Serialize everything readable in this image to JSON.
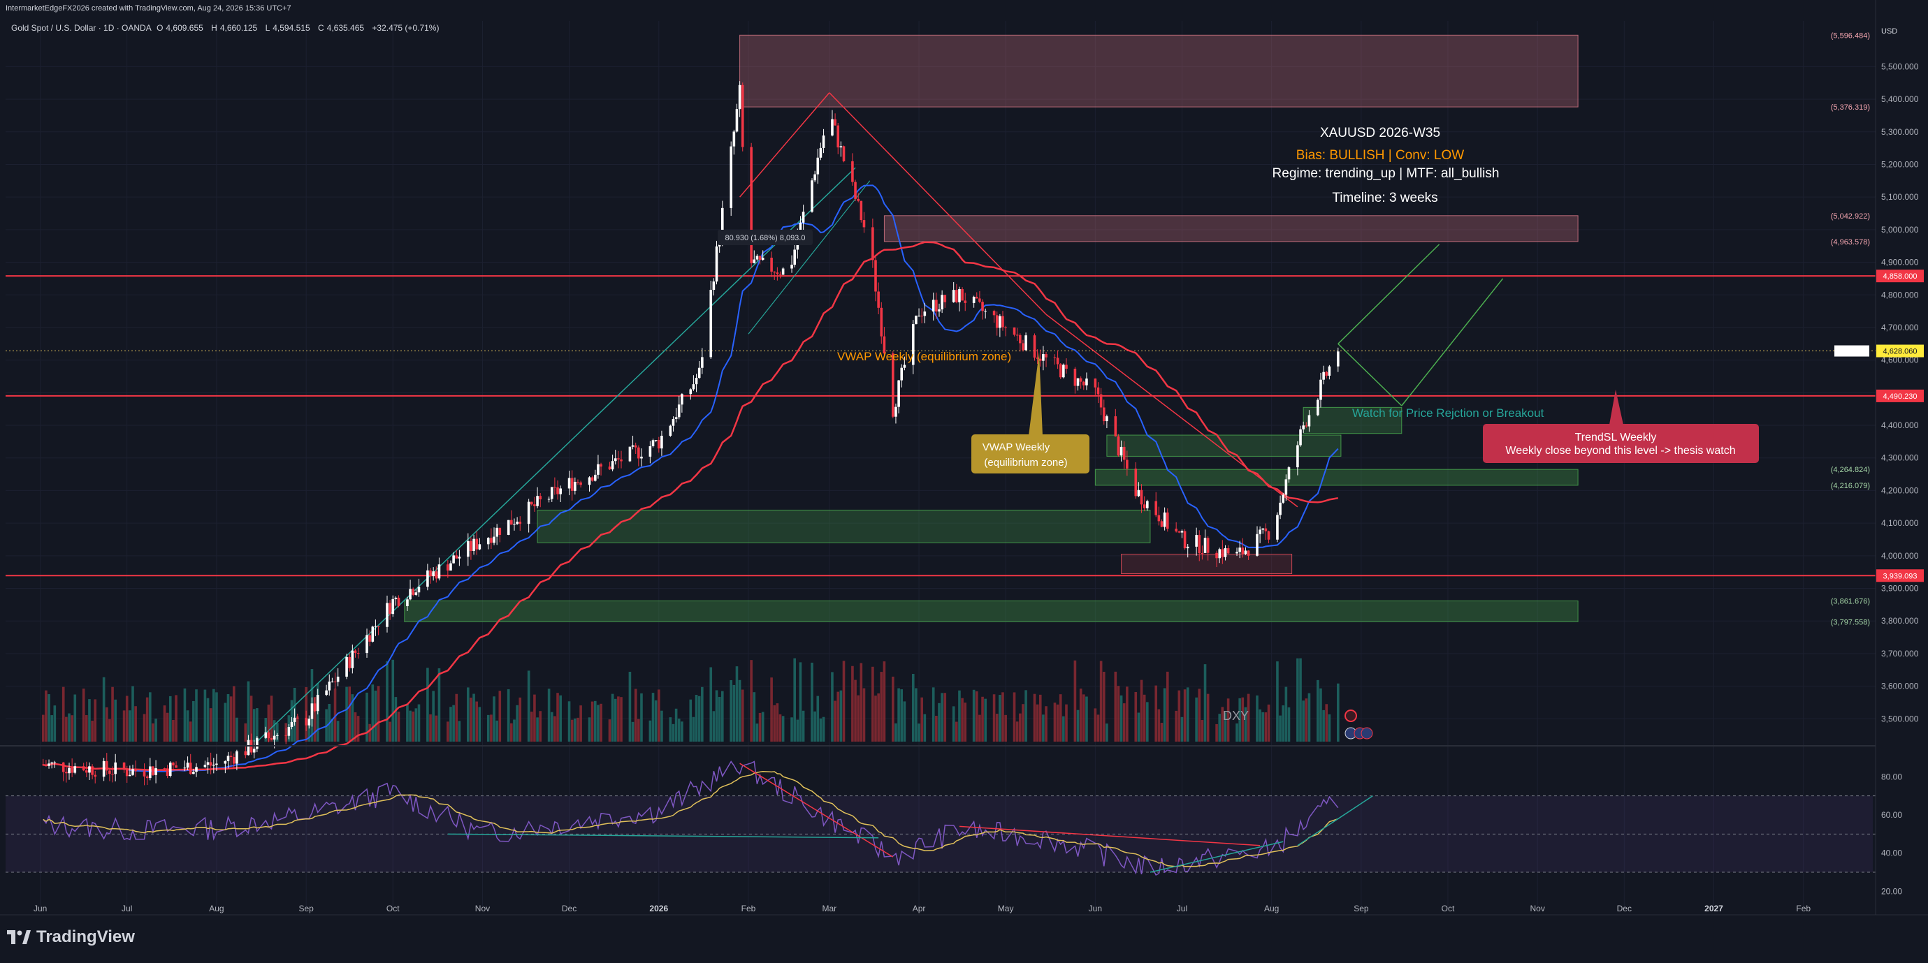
{
  "header": {
    "attribution": "IntermarketEdgeFX2026 created with TradingView.com, Aug 24, 2026 15:36 UTC+7",
    "symbol": "Gold Spot / U.S. Dollar · 1D · OANDA",
    "ohlc": [
      {
        "k": "O",
        "v": "4,609.655"
      },
      {
        "k": "H",
        "v": "4,660.125"
      },
      {
        "k": "L",
        "v": "4,594.515"
      },
      {
        "k": "C",
        "v": "4,635.465"
      }
    ],
    "change": "+32.475 (+0.71%)"
  },
  "axis": {
    "currency": "USD",
    "ticks": [
      "5,500.000",
      "5,400.000",
      "5,300.000",
      "5,200.000",
      "5,100.000",
      "5,000.000",
      "4,900.000",
      "4,800.000",
      "4,700.000",
      "4,600.000",
      "4,500.000",
      "4,400.000",
      "4,300.000",
      "4,200.000",
      "4,100.000",
      "4,000.000",
      "3,900.000",
      "3,800.000",
      "3,700.000",
      "3,600.000",
      "3,500.000"
    ],
    "rsi_ticks": [
      "80.00",
      "60.00",
      "40.00",
      "20.00"
    ],
    "months": [
      "Jun",
      "Jul",
      "Aug",
      "Sep",
      "Oct",
      "Nov",
      "Dec",
      "2026",
      "Feb",
      "Mar",
      "Apr",
      "May",
      "Jun",
      "Jul",
      "Aug",
      "Sep",
      "Oct",
      "Nov",
      "Dec",
      "2027",
      "Feb"
    ]
  },
  "price_labels": [
    {
      "text": "(5,596.484)",
      "value": 5596.484,
      "style": "plain"
    },
    {
      "text": "(5,376.319)",
      "value": 5376.319,
      "style": "plain"
    },
    {
      "text": "(5,042.922)",
      "value": 5042.922,
      "style": "plain"
    },
    {
      "text": "(4,963.578)",
      "value": 4963.578,
      "style": "plain"
    },
    {
      "text": "4,858.000",
      "value": 4858.0,
      "style": "red"
    },
    {
      "text": "4,628.060",
      "value": 4628.06,
      "style": "yellow"
    },
    {
      "text": "4,490.230",
      "value": 4490.23,
      "style": "red"
    },
    {
      "text": "(4,264.824)",
      "value": 4264.824,
      "style": "green"
    },
    {
      "text": "(4,216.079)",
      "value": 4216.079,
      "style": "green"
    },
    {
      "text": "3,939.093",
      "value": 3939.093,
      "style": "red"
    },
    {
      "text": "(3,861.676)",
      "value": 3861.676,
      "style": "green"
    },
    {
      "text": "(3,797.558)",
      "value": 3797.558,
      "style": "green"
    }
  ],
  "info_panel": {
    "title": "XAUUSD 2026-W35",
    "bias": "Bias: BULLISH | Conv: LOW",
    "regime": "Regime: trending_up | MTF: all_bullish",
    "timeline": "Timeline: 3 weeks"
  },
  "annotations": {
    "measure": "80.930 (1.68%) 8,093.0",
    "vwap_line": "VWAP Weekly (equilibrium zone)",
    "vwap_box_1": "VWAP Weekly",
    "vwap_box_2": "(equilibrium zone)",
    "watch": "Watch for Price Rejction or Breakout",
    "trendsl_1": "TrendSL Weekly",
    "trendsl_2": "Weekly close beyond this level -> thesis watch",
    "dxy": "DXY"
  },
  "footer": {
    "brand": "TradingView"
  },
  "colors": {
    "background": "#131722",
    "up": "#ffffff",
    "down": "#f23645",
    "vwap": "#2962ff",
    "ma": "#f23645",
    "rsi": "#7e57c2",
    "rsi_ma": "#e0c05a",
    "zone_green": "#4caf50",
    "zone_red": "#f7525f"
  },
  "chart_data": {
    "type": "line",
    "title": "Gold Spot / U.S. Dollar · 1D · OANDA",
    "x": [
      "2025-06-01",
      "2025-07-01",
      "2025-08-01",
      "2025-09-01",
      "2025-10-01",
      "2025-11-01",
      "2025-12-01",
      "2026-01-01",
      "2026-01-15",
      "2026-01-29",
      "2026-02-01",
      "2026-02-15",
      "2026-03-01",
      "2026-03-15",
      "2026-03-23",
      "2026-04-01",
      "2026-04-15",
      "2026-05-01",
      "2026-05-15",
      "2026-06-01",
      "2026-06-15",
      "2026-07-01",
      "2026-07-20",
      "2026-08-01",
      "2026-08-12",
      "2026-08-24"
    ],
    "series": [
      {
        "name": "XAUUSD",
        "values": [
          3360,
          3340,
          3360,
          3500,
          3860,
          4050,
          4220,
          4350,
          4560,
          5420,
          4900,
          4870,
          5360,
          4950,
          4450,
          4750,
          4800,
          4700,
          4600,
          4500,
          4200,
          4050,
          4000,
          4080,
          4400,
          4635
        ]
      }
    ],
    "rsi": {
      "x": [
        "2025-06-01",
        "2025-07-01",
        "2025-08-01",
        "2025-09-01",
        "2025-10-01",
        "2025-11-01",
        "2025-12-01",
        "2026-01-01",
        "2026-01-29",
        "2026-03-01",
        "2026-03-23",
        "2026-04-15",
        "2026-05-15",
        "2026-06-20",
        "2026-08-01",
        "2026-08-24"
      ],
      "values": [
        55,
        52,
        53,
        60,
        72,
        50,
        56,
        62,
        87,
        58,
        38,
        52,
        48,
        32,
        42,
        68
      ],
      "ylim": [
        15,
        90
      ]
    },
    "ylim": [
      3430,
      5640
    ],
    "grid": true,
    "legend": "none"
  }
}
